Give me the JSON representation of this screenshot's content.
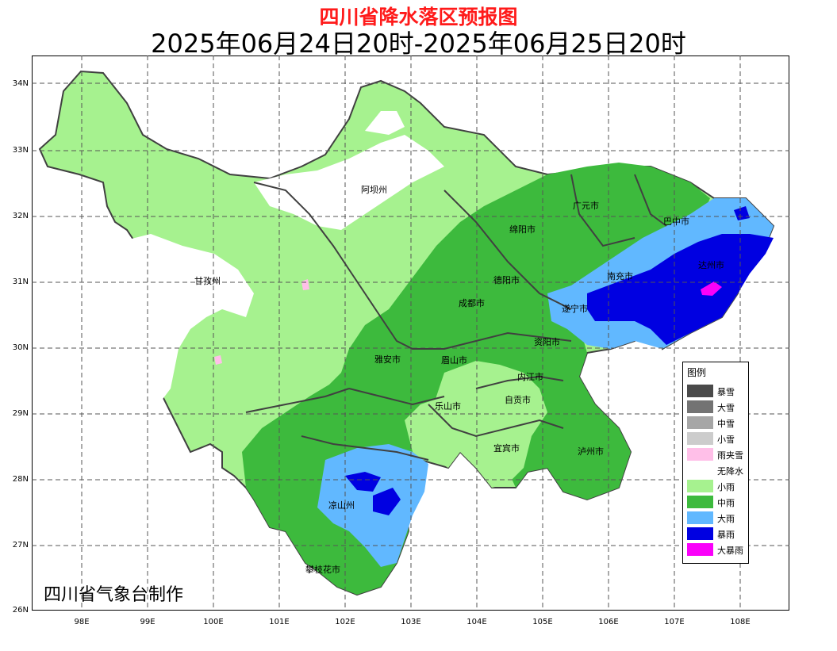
{
  "title": "四川省降水落区预报图",
  "subtitle": "2025年06月24日20时-2025年06月25日20时",
  "credit": "四川省气象台制作",
  "axes": {
    "y_ticks": [
      "34N",
      "33N",
      "32N",
      "31N",
      "30N",
      "29N",
      "28N",
      "27N",
      "26N"
    ],
    "x_ticks": [
      "98E",
      "99E",
      "100E",
      "101E",
      "102E",
      "103E",
      "104E",
      "105E",
      "106E",
      "107E",
      "108E"
    ]
  },
  "legend": {
    "title": "图例",
    "items": [
      {
        "label": "暴雪",
        "color": "#4a4a4a"
      },
      {
        "label": "大雪",
        "color": "#737373"
      },
      {
        "label": "中雪",
        "color": "#a6a6a6"
      },
      {
        "label": "小雪",
        "color": "#cccccc"
      },
      {
        "label": "雨夹雪",
        "color": "#ffbfe8"
      },
      {
        "label": "无降水",
        "color": "#ffffff"
      },
      {
        "label": "小雨",
        "color": "#a6f28f"
      },
      {
        "label": "中雨",
        "color": "#3dba3d"
      },
      {
        "label": "大雨",
        "color": "#61b8ff"
      },
      {
        "label": "暴雨",
        "color": "#0000e1"
      },
      {
        "label": "大暴雨",
        "color": "#fa00fa"
      }
    ]
  },
  "cities": [
    {
      "name": "阿坝州"
    },
    {
      "name": "甘孜州"
    },
    {
      "name": "广元市"
    },
    {
      "name": "巴中市"
    },
    {
      "name": "绵阳市"
    },
    {
      "name": "达州市"
    },
    {
      "name": "德阳市"
    },
    {
      "name": "南充市"
    },
    {
      "name": "成都市"
    },
    {
      "name": "遂宁市"
    },
    {
      "name": "资阳市"
    },
    {
      "name": "雅安市"
    },
    {
      "name": "眉山市"
    },
    {
      "name": "内江市"
    },
    {
      "name": "乐山市"
    },
    {
      "name": "自贡市"
    },
    {
      "name": "宜宾市"
    },
    {
      "name": "泸州市"
    },
    {
      "name": "凉山州"
    },
    {
      "name": "攀枝花市"
    }
  ]
}
